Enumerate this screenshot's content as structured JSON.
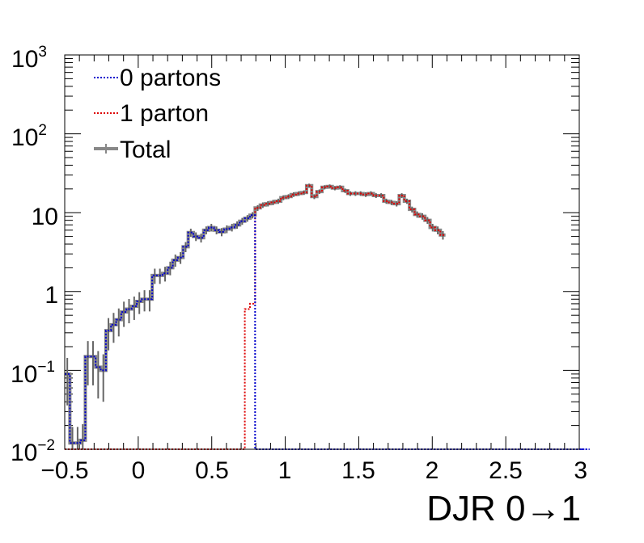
{
  "chart_data": {
    "type": "line",
    "title": "",
    "xlabel": "DJR 0→1",
    "ylabel": "",
    "xlim": [
      -0.5,
      3.0
    ],
    "ylim": [
      0.01,
      1000
    ],
    "log_y": true,
    "grid": false,
    "x_tick_labels": [
      "−0.5",
      "0",
      "0.5",
      "1",
      "1.5",
      "2",
      "2.5",
      "3"
    ],
    "y_tick_labels": [
      {
        "mantissa": "10",
        "exp": "−2"
      },
      {
        "mantissa": "10",
        "exp": "−1"
      },
      {
        "mantissa": "1",
        "exp": ""
      },
      {
        "mantissa": "10",
        "exp": ""
      },
      {
        "mantissa": "10",
        "exp": "2"
      },
      {
        "mantissa": "10",
        "exp": "3"
      }
    ],
    "legend_position": "top-left",
    "bin_width": 0.035,
    "series": [
      {
        "name": "0 partons",
        "color": "#0000cc",
        "style": "dotted",
        "x_start": -0.5,
        "values": [
          0.09,
          0.012,
          0.012,
          0.013,
          0.15,
          0.15,
          0.11,
          0.1,
          0.32,
          0.38,
          0.44,
          0.55,
          0.6,
          0.65,
          0.75,
          0.8,
          0.8,
          1.6,
          1.6,
          1.7,
          2.0,
          2.5,
          2.7,
          3.7,
          5.6,
          5.0,
          4.8,
          6.0,
          6.5,
          6.0,
          5.7,
          6.2,
          6.5,
          7.0,
          7.8,
          8.5,
          9.3,
          0.01,
          0.01,
          0.01,
          0.01,
          0.01,
          0.01,
          0.01,
          0.01,
          0.01,
          0.01,
          0.01,
          0.01,
          0.01,
          0.01,
          0.01,
          0.01,
          0.01,
          0.01,
          0.01,
          0.01,
          0.01,
          0.01,
          0.01,
          0.01,
          0.01,
          0.01,
          0.01,
          0.01,
          0.01,
          0.01,
          0.01,
          0.01,
          0.01,
          0.01,
          0.01,
          0.01,
          0.01,
          0.01,
          0.01,
          0.01,
          0.01,
          0.01,
          0.01,
          0.01,
          0.01,
          0.01,
          0.01,
          0.01,
          0.01,
          0.01,
          0.01,
          0.01,
          0.01,
          0.01,
          0.01,
          0.01,
          0.01,
          0.01,
          0.01,
          0.01,
          0.01,
          0.01,
          0.01,
          0.01,
          0.01,
          0.01
        ]
      },
      {
        "name": "1 parton",
        "color": "#dd0000",
        "style": "dotted",
        "x_start": -0.5,
        "values": [
          0.01,
          0.01,
          0.01,
          0.01,
          0.01,
          0.01,
          0.01,
          0.01,
          0.01,
          0.01,
          0.01,
          0.01,
          0.01,
          0.01,
          0.01,
          0.01,
          0.01,
          0.01,
          0.01,
          0.01,
          0.01,
          0.01,
          0.01,
          0.01,
          0.01,
          0.01,
          0.01,
          0.01,
          0.01,
          0.01,
          0.01,
          0.01,
          0.01,
          0.01,
          0.01,
          0.6,
          0.7,
          11.5,
          12.5,
          13.0,
          13.5,
          14.0,
          15.5,
          16.0,
          17.0,
          17.5,
          18.0,
          22.0,
          16.0,
          18.5,
          21.0,
          21.5,
          20.5,
          21.0,
          19.0,
          17.5,
          17.5,
          17.5,
          17.0,
          17.5,
          16.5,
          16.5,
          14.0,
          13.5,
          13.0,
          16.5,
          14.0,
          11.0,
          9.5,
          9.0,
          8.0,
          6.5,
          6.0,
          5.2
        ]
      },
      {
        "name": "Total",
        "color": "#888888",
        "style": "solid",
        "x_start": -0.5,
        "values": [
          0.09,
          0.012,
          0.012,
          0.013,
          0.15,
          0.15,
          0.11,
          0.1,
          0.32,
          0.38,
          0.44,
          0.55,
          0.6,
          0.65,
          0.75,
          0.8,
          0.8,
          1.6,
          1.6,
          1.7,
          2.0,
          2.5,
          2.7,
          3.7,
          5.6,
          5.0,
          4.8,
          6.0,
          6.5,
          6.0,
          5.7,
          6.2,
          6.5,
          7.0,
          7.8,
          8.5,
          9.3,
          11.5,
          12.5,
          13.0,
          13.5,
          14.0,
          15.5,
          16.0,
          17.0,
          17.5,
          18.0,
          22.0,
          16.0,
          18.5,
          21.0,
          21.5,
          20.5,
          21.0,
          19.0,
          17.5,
          17.5,
          17.5,
          17.0,
          17.5,
          16.5,
          16.5,
          14.0,
          13.5,
          13.0,
          16.5,
          14.0,
          11.0,
          9.5,
          9.0,
          8.0,
          6.5,
          6.0,
          5.2
        ]
      }
    ]
  }
}
